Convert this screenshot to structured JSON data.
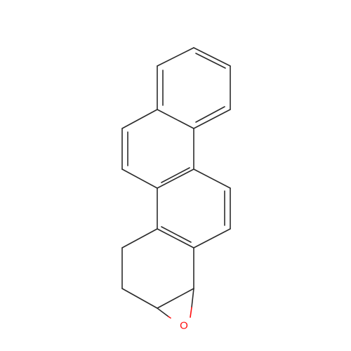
{
  "molecule": {
    "atom_labels": [
      {
        "id": "O1",
        "text": "O",
        "element": "oxygen",
        "color": "#ff0d0d"
      }
    ]
  },
  "colors": {
    "bond": "#2b2b2b",
    "oxygen": "#ff0d0d",
    "background": "#ffffff"
  }
}
